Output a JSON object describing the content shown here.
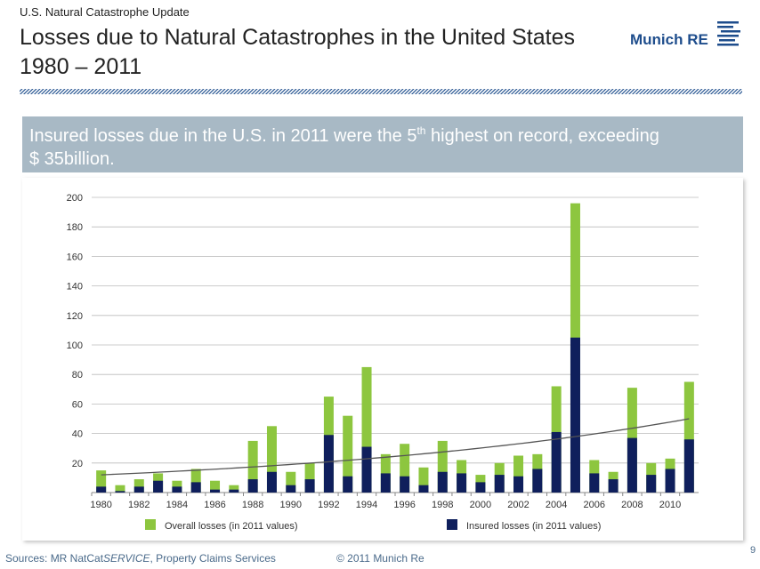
{
  "header": {
    "kicker": "U.S. Natural Catastrophe Update",
    "title_line1": "Losses due to Natural Catastrophes in the United States",
    "title_line2": "1980 – 2011",
    "logo": "Munich RE"
  },
  "banner": {
    "before": "Insured losses due in the U.S. in 2011 were the 5",
    "sup": "th",
    "after": " highest on record, exceeding",
    "line2": "$ 35billion."
  },
  "chart_data": {
    "type": "bar",
    "categories": [
      "1980",
      null,
      "1982",
      null,
      "1984",
      null,
      "1986",
      null,
      "1988",
      null,
      "1990",
      null,
      "1992",
      null,
      "1994",
      null,
      "1996",
      null,
      "1998",
      null,
      "2000",
      null,
      "2002",
      null,
      "2004",
      null,
      "2006",
      null,
      "2008",
      null,
      "2010",
      null
    ],
    "series": [
      {
        "name": "Overall losses (in 2011 values)",
        "color": "#8dc63f",
        "values": [
          15,
          5,
          9,
          13,
          8,
          16,
          8,
          5,
          35,
          45,
          14,
          20,
          65,
          52,
          85,
          26,
          33,
          17,
          35,
          22,
          12,
          20,
          25,
          26,
          72,
          196,
          22,
          14,
          71,
          20,
          23,
          75
        ]
      },
      {
        "name": "Insured losses (in 2011 values)",
        "color": "#0f1f5c",
        "values": [
          4,
          1,
          4,
          8,
          4,
          7,
          2,
          2,
          9,
          14,
          5,
          9,
          39,
          11,
          31,
          13,
          11,
          5,
          14,
          13,
          7,
          12,
          11,
          16,
          41,
          105,
          13,
          9,
          37,
          12,
          16,
          36
        ]
      }
    ],
    "trend_line": {
      "start": 12,
      "end": 50,
      "color": "#555555"
    },
    "ylim": [
      0,
      200
    ],
    "yticks": [
      20,
      40,
      60,
      80,
      100,
      120,
      140,
      160,
      180,
      200
    ],
    "grid": true
  },
  "footer": {
    "source_prefix": "Sources: MR NatCat",
    "source_italic": "SERVICE",
    "source_suffix": ", Property Claims Services",
    "copyright": "© 2011 Munich Re",
    "page": "9"
  }
}
